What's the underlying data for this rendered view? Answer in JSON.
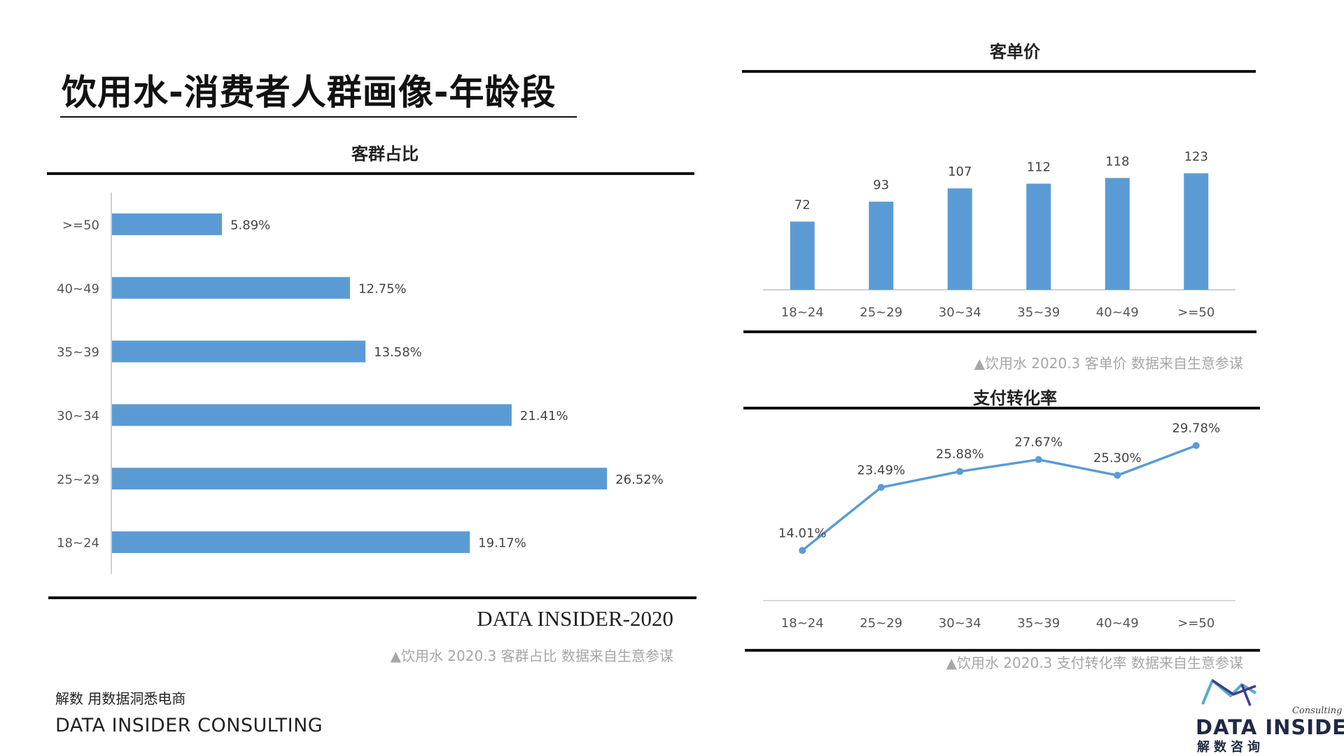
{
  "page": {
    "title": "饮用水-消费者人群画像-年龄段",
    "signature": "DATA INSIDER-2020",
    "footer_cn": "解数 用数据洞悉电商",
    "footer_en": "DATA INSIDER CONSULTING",
    "logo": {
      "word": "DATA INSIDER",
      "sub": "解数咨询",
      "consulting": "Consulting",
      "colors": [
        "#5aa9c9",
        "#3b3f8c"
      ]
    },
    "accent_color": "#5b9bd5"
  },
  "panels": {
    "share": {
      "title": "客群占比",
      "source": "▲饮用水 2020.3 客群占比 数据来自生意参谋"
    },
    "aov": {
      "title": "客单价",
      "source": "▲饮用水 2020.3 客单价 数据来自生意参谋"
    },
    "conv": {
      "title": "支付转化率",
      "source": "▲饮用水 2020.3 支付转化率 数据来自生意参谋"
    }
  },
  "chart_data": [
    {
      "id": "share",
      "type": "bar",
      "orientation": "horizontal",
      "title": "客群占比",
      "categories": [
        ">=50",
        "40~49",
        "35~39",
        "30~34",
        "25~29",
        "18~24"
      ],
      "values": [
        5.89,
        12.75,
        13.58,
        21.41,
        26.52,
        19.17
      ],
      "labels": [
        "5.89%",
        "12.75%",
        "13.58%",
        "21.41%",
        "26.52%",
        "19.17%"
      ],
      "unit": "%",
      "xlim": [
        0,
        30
      ],
      "grid": false,
      "color": "#5b9bd5"
    },
    {
      "id": "aov",
      "type": "bar",
      "orientation": "vertical",
      "title": "客单价",
      "categories": [
        "18~24",
        "25~29",
        "30~34",
        "35~39",
        "40~49",
        ">=50"
      ],
      "values": [
        72,
        93,
        107,
        112,
        118,
        123
      ],
      "labels": [
        "72",
        "93",
        "107",
        "112",
        "118",
        "123"
      ],
      "ylim": [
        0,
        130
      ],
      "grid": false,
      "color": "#5b9bd5"
    },
    {
      "id": "conv",
      "type": "line",
      "title": "支付转化率",
      "categories": [
        "18~24",
        "25~29",
        "30~34",
        "35~39",
        "40~49",
        ">=50"
      ],
      "values": [
        14.01,
        23.49,
        25.88,
        27.67,
        25.3,
        29.78
      ],
      "labels": [
        "14.01%",
        "23.49%",
        "25.88%",
        "27.67%",
        "25.30%",
        "29.78%"
      ],
      "unit": "%",
      "ylim": [
        10,
        30
      ],
      "grid": false,
      "color": "#5b9bd5"
    }
  ]
}
